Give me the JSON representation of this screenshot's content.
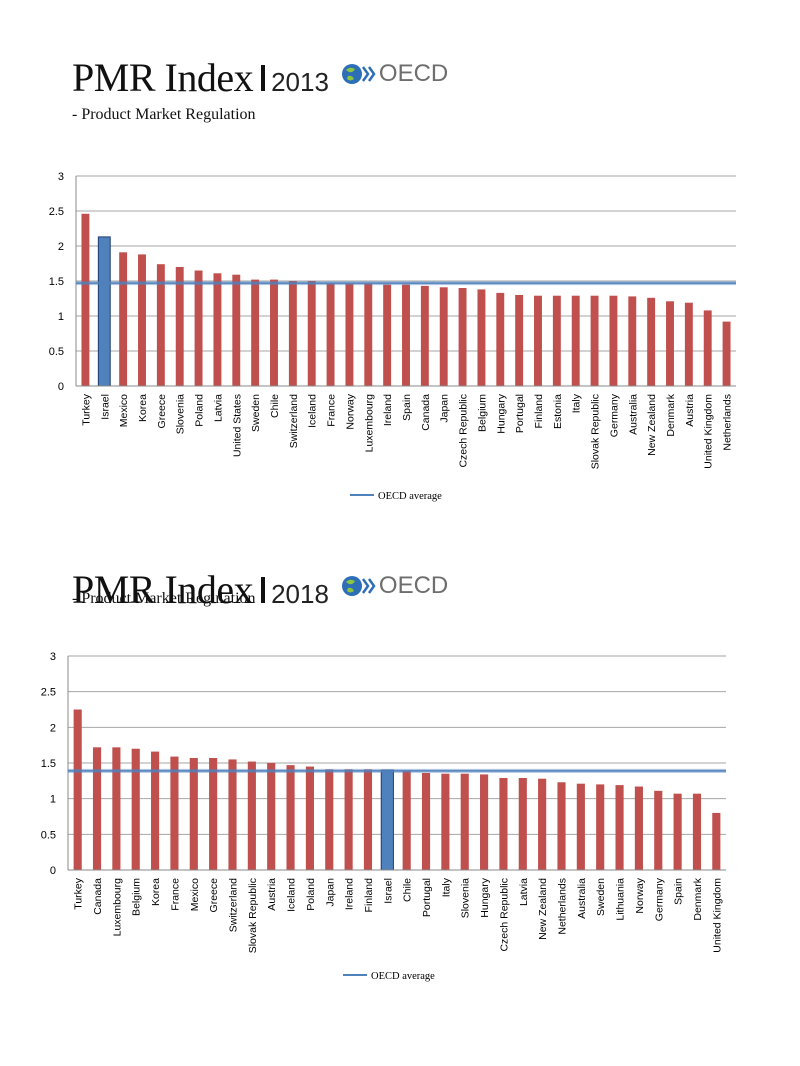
{
  "panels": [
    {
      "title": "PMR Index",
      "year": "2013",
      "logo_text": "OECD",
      "subtitle": "- Product Market Regulation"
    },
    {
      "title": "PMR Index",
      "year": "2018",
      "logo_text": "OECD",
      "subtitle": "- Product Market Regulation"
    }
  ],
  "colors": {
    "bar": "#c0504d",
    "highlight": "#4f81bd",
    "average_line": "#4f81bd",
    "grid": "#a6a6a6"
  },
  "chart_data": [
    {
      "type": "bar",
      "title": "PMR Index 2013",
      "ylim": [
        0,
        3
      ],
      "yticks": [
        "0",
        "0.5",
        "1",
        "1.5",
        "2",
        "2.5",
        "3"
      ],
      "grid": true,
      "legend": {
        "position": "bottom",
        "label": "OECD average"
      },
      "highlight": "Israel",
      "average": 1.47,
      "categories": [
        "Turkey",
        "Israel",
        "Mexico",
        "Korea",
        "Greece",
        "Slovenia",
        "Poland",
        "Latvia",
        "United States",
        "Sweden",
        "Chile",
        "Switzerland",
        "Iceland",
        "France",
        "Norway",
        "Luxembourg",
        "Ireland",
        "Spain",
        "Canada",
        "Japan",
        "Czech Republic",
        "Belgium",
        "Hungary",
        "Portugal",
        "Finland",
        "Estonia",
        "Italy",
        "Slovak Republic",
        "Germany",
        "Australia",
        "New Zealand",
        "Denmark",
        "Austria",
        "United Kingdom",
        "Netherlands"
      ],
      "values": [
        2.46,
        2.13,
        1.91,
        1.88,
        1.74,
        1.7,
        1.65,
        1.61,
        1.59,
        1.52,
        1.52,
        1.5,
        1.5,
        1.46,
        1.46,
        1.46,
        1.45,
        1.45,
        1.43,
        1.41,
        1.4,
        1.38,
        1.33,
        1.3,
        1.29,
        1.29,
        1.29,
        1.29,
        1.29,
        1.28,
        1.26,
        1.21,
        1.19,
        1.08,
        0.92
      ]
    },
    {
      "type": "bar",
      "title": "PMR Index 2018",
      "ylim": [
        0,
        3
      ],
      "yticks": [
        "0",
        "0.5",
        "1",
        "1.5",
        "2",
        "2.5",
        "3"
      ],
      "grid": true,
      "legend": {
        "position": "bottom",
        "label": "OECD average"
      },
      "highlight": "Israel",
      "average": 1.39,
      "categories": [
        "Turkey",
        "Canada",
        "Luxembourg",
        "Belgium",
        "Korea",
        "France",
        "Mexico",
        "Greece",
        "Switzerland",
        "Slovak Republic",
        "Austria",
        "Iceland",
        "Poland",
        "Japan",
        "Ireland",
        "Finland",
        "Israel",
        "Chile",
        "Portugal",
        "Italy",
        "Slovenia",
        "Hungary",
        "Czech Republic",
        "Latvia",
        "New Zealand",
        "Netherlands",
        "Australia",
        "Sweden",
        "Lithuania",
        "Norway",
        "Germany",
        "Spain",
        "Denmark",
        "United Kingdom"
      ],
      "values": [
        2.25,
        1.72,
        1.72,
        1.7,
        1.66,
        1.59,
        1.57,
        1.57,
        1.55,
        1.52,
        1.5,
        1.47,
        1.45,
        1.41,
        1.41,
        1.41,
        1.4,
        1.38,
        1.36,
        1.35,
        1.35,
        1.34,
        1.29,
        1.29,
        1.28,
        1.23,
        1.21,
        1.2,
        1.19,
        1.17,
        1.11,
        1.07,
        1.07,
        0.8
      ]
    }
  ]
}
